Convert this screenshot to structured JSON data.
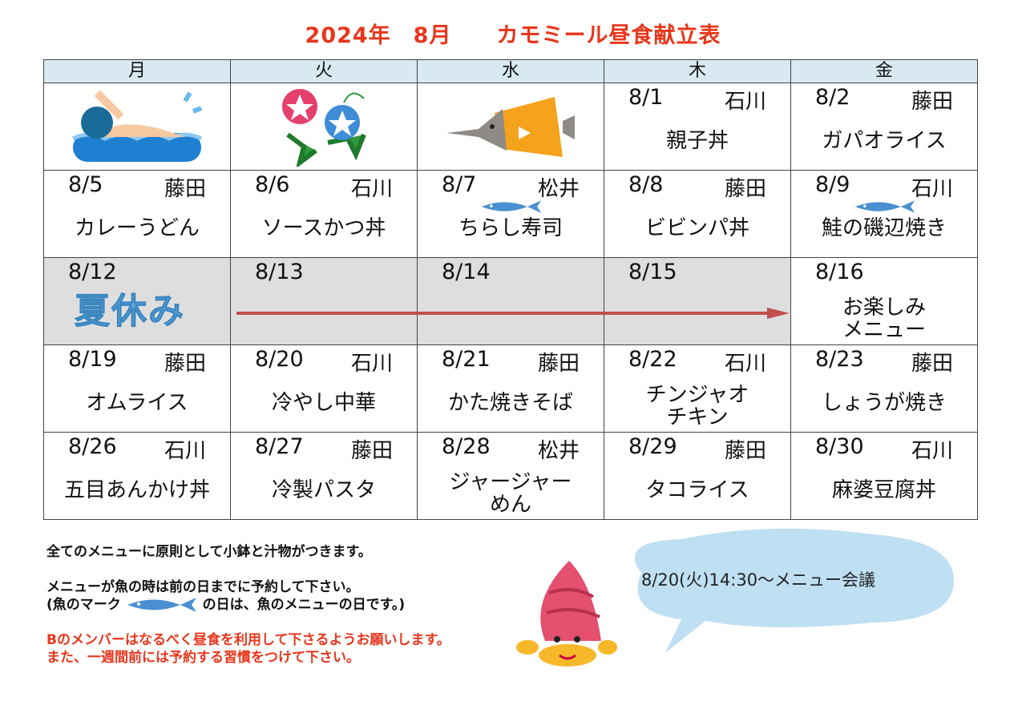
{
  "title": "2024年　8月　　カモミール昼食献立表",
  "weekdays": [
    "月",
    "火",
    "水",
    "木",
    "金"
  ],
  "rows": [
    [
      {
        "image": "swimmer"
      },
      {
        "image": "morning-glory"
      },
      {
        "image": "butterfly-fish"
      },
      {
        "date": "8/1",
        "who": "石川",
        "menu": "親子丼"
      },
      {
        "date": "8/2",
        "who": "藤田",
        "menu": "ガパオライス"
      }
    ],
    [
      {
        "date": "8/5",
        "who": "藤田",
        "menu": "カレーうどん"
      },
      {
        "date": "8/6",
        "who": "石川",
        "menu": "ソースかつ丼"
      },
      {
        "date": "8/7",
        "who": "松井",
        "menu": "ちらし寿司",
        "fish": true
      },
      {
        "date": "8/8",
        "who": "藤田",
        "menu": "ビビンパ丼"
      },
      {
        "date": "8/9",
        "who": "石川",
        "menu": "鮭の磯辺焼き",
        "fish": true
      }
    ],
    [
      {
        "date": "8/12",
        "holiday": "夏休み"
      },
      {
        "date": "8/13"
      },
      {
        "date": "8/14"
      },
      {
        "date": "8/15"
      },
      {
        "date": "8/16",
        "menu": "お楽しみ\nメニュー"
      }
    ],
    [
      {
        "date": "8/19",
        "who": "藤田",
        "menu": "オムライス"
      },
      {
        "date": "8/20",
        "who": "石川",
        "menu": "冷やし中華"
      },
      {
        "date": "8/21",
        "who": "藤田",
        "menu": "かた焼きそば"
      },
      {
        "date": "8/22",
        "who": "石川",
        "menu": "チンジャオ\nチキン"
      },
      {
        "date": "8/23",
        "who": "藤田",
        "menu": "しょうが焼き"
      }
    ],
    [
      {
        "date": "8/26",
        "who": "石川",
        "menu": "五目あんかけ丼"
      },
      {
        "date": "8/27",
        "who": "藤田",
        "menu": "冷製パスタ"
      },
      {
        "date": "8/28",
        "who": "松井",
        "menu": "ジャージャー\nめん"
      },
      {
        "date": "8/29",
        "who": "藤田",
        "menu": "タコライス"
      },
      {
        "date": "8/30",
        "who": "石川",
        "menu": "麻婆豆腐丼"
      }
    ]
  ],
  "notes": {
    "line1": "全てのメニューに原則として小鉢と汁物がつきます。",
    "line2": "メニューが魚の時は前の日までに予約して下さい。",
    "line3a": "(魚のマーク",
    "line3b": "の日は、魚のメニューの日です。)",
    "line4": "Bのメンバーはなるべく昼食を利用して下さるようお願いします。",
    "line5": "また、一週間前には予約する習慣をつけて下さい。"
  },
  "meeting": "8/20(火)14:30～メニュー会議",
  "colors": {
    "title": "#e8361c",
    "header": "#d8e9f1",
    "holiday": "#dedede",
    "arrow": "#c0504d",
    "fish": "#4a8fd0"
  }
}
